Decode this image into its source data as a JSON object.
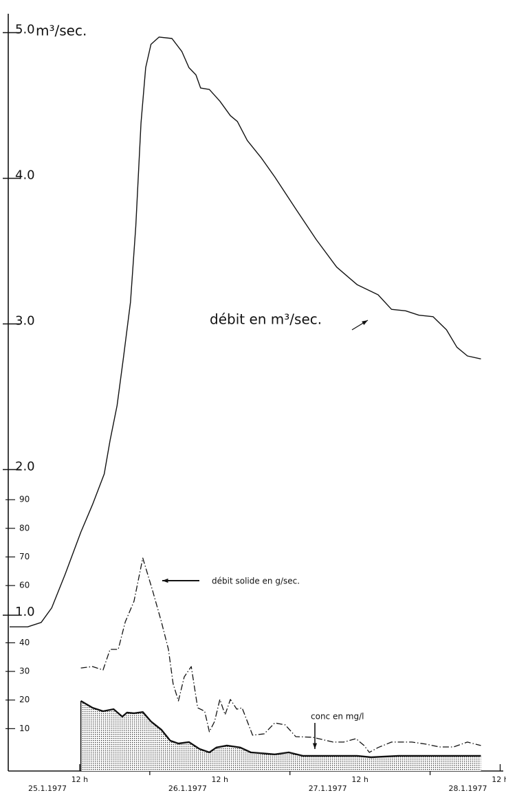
{
  "chart_data": {
    "type": "line",
    "y_unit": "m³/sec.",
    "xlim": [
      0,
      85
    ],
    "ylim": [
      -0.07,
      5.13
    ],
    "y2lim": [
      -4.8,
      259.8
    ],
    "xticks": [
      {
        "value": 12,
        "label": "12 h"
      },
      {
        "value": 36,
        "label": "12 h"
      },
      {
        "value": 60,
        "label": "12 h"
      },
      {
        "value": 84,
        "label": "12 h"
      }
    ],
    "xticks_major": [
      24,
      48,
      72
    ],
    "date_labels": [
      "25.1.1977",
      "26.1.1977",
      "27.1.1977",
      "28.1.1977"
    ],
    "yticks": [
      {
        "value": 1,
        "label": "1.0"
      },
      {
        "value": 2,
        "label": "2.0"
      },
      {
        "value": 3,
        "label": "3.0"
      },
      {
        "value": 4,
        "label": "4.0"
      },
      {
        "value": 5,
        "label": "5.0"
      }
    ],
    "y2ticks": [
      10,
      20,
      30,
      40,
      60,
      70,
      80,
      90
    ],
    "series": [
      {
        "name": "débit en m³/sec.",
        "color": "#111111",
        "axis": "y",
        "x": [
          0,
          3.1,
          5.4,
          7.2,
          9.5,
          12.2,
          14.2,
          16.2,
          17.2,
          18.4,
          19.5,
          20.7,
          21.6,
          22.5,
          23.3,
          24.2,
          25.6,
          27.8,
          29.5,
          30.7,
          31.9,
          32.7,
          34.2,
          36.0,
          37.8,
          39.0,
          40.7,
          43.1,
          45.4,
          49.0,
          52.5,
          56.0,
          59.5,
          63.1,
          65.4,
          67.8,
          70.1,
          72.5,
          74.8,
          76.6,
          78.4,
          80.7
        ],
        "values": [
          0.92,
          0.92,
          0.95,
          1.05,
          1.28,
          1.57,
          1.76,
          1.97,
          2.2,
          2.44,
          2.77,
          3.15,
          3.67,
          4.38,
          4.76,
          4.92,
          4.97,
          4.96,
          4.87,
          4.76,
          4.71,
          4.62,
          4.61,
          4.53,
          4.43,
          4.39,
          4.26,
          4.14,
          4.01,
          3.79,
          3.58,
          3.39,
          3.27,
          3.2,
          3.1,
          3.09,
          3.06,
          3.05,
          2.96,
          2.84,
          2.78,
          2.76
        ]
      },
      {
        "name": "débit solide en g/sec.",
        "color": "#111111",
        "axis": "y2",
        "x": [
          12.2,
          14.2,
          16.0,
          17.2,
          18.6,
          19.8,
          21.3,
          22.8,
          24.5,
          26.0,
          27.2,
          28.0,
          28.9,
          29.9,
          31.1,
          32.2,
          33.4,
          34.2,
          35.1,
          36.0,
          36.9,
          37.8,
          38.9,
          39.8,
          41.6,
          43.6,
          45.4,
          47.2,
          49.0,
          51.9,
          55.4,
          57.2,
          59.3,
          60.7,
          61.6,
          63.1,
          65.4,
          68.9,
          71.3,
          73.6,
          76.0,
          78.4,
          80.7
        ],
        "values": [
          31.2,
          31.7,
          30.5,
          37.7,
          37.7,
          47.3,
          54.5,
          69.6,
          58.1,
          47.3,
          37.7,
          25.7,
          19.7,
          28.1,
          31.7,
          17.3,
          16.1,
          8.9,
          12.5,
          20.2,
          14.9,
          20.2,
          16.8,
          17.3,
          7.7,
          8.2,
          12.0,
          11.3,
          7.2,
          7.0,
          5.3,
          5.3,
          6.5,
          4.1,
          1.7,
          3.4,
          5.3,
          5.3,
          4.6,
          3.6,
          3.6,
          5.3,
          4.1
        ]
      },
      {
        "name": "conc en mg/l",
        "color": "#111111",
        "axis": "y2",
        "x": [
          12.2,
          14.2,
          16.0,
          17.8,
          19.3,
          20.1,
          21.3,
          22.8,
          24.2,
          26.0,
          27.5,
          28.9,
          30.7,
          32.5,
          34.2,
          35.4,
          37.2,
          39.5,
          41.3,
          45.4,
          47.8,
          50.2,
          54.8,
          59.5,
          61.9,
          66.6,
          73.6,
          80.7
        ],
        "values": [
          19.7,
          17.3,
          16.1,
          16.8,
          14.2,
          15.6,
          15.4,
          15.8,
          12.5,
          9.6,
          5.8,
          4.8,
          5.3,
          2.9,
          1.7,
          3.4,
          4.1,
          3.4,
          1.7,
          1.0,
          1.7,
          0.5,
          0.5,
          0.5,
          0,
          0.5,
          0.5,
          0.5
        ]
      }
    ]
  }
}
